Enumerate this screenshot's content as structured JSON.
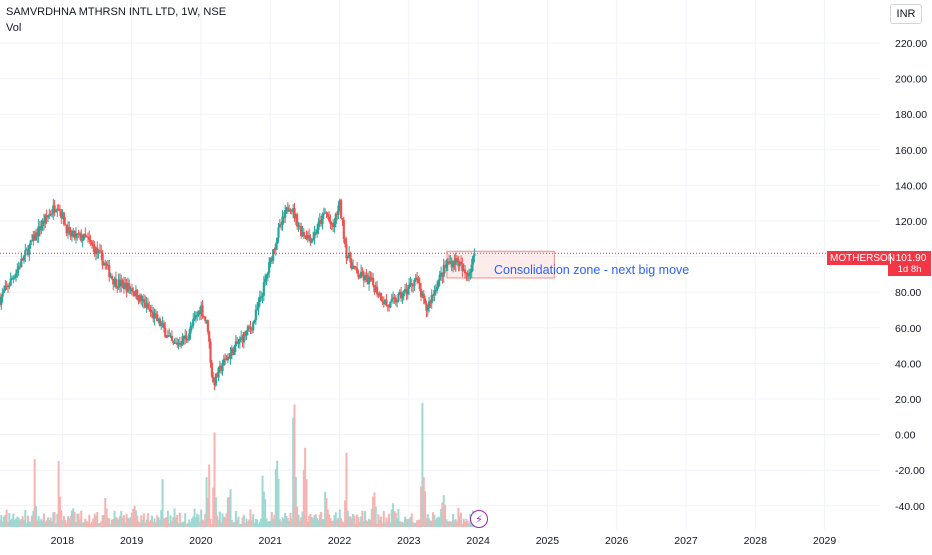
{
  "header": {
    "symbol_line": "SAMVRDHNA MTHRSN INTL LTD, 1W, NSE",
    "volume_label": "Vol"
  },
  "currency_button": "INR",
  "price_tag": {
    "ticker": "MOTHERSON",
    "price": "101.90",
    "countdown": "1d 8h"
  },
  "annotation": {
    "text": "Consolidation zone - next big move"
  },
  "colors": {
    "up": "#26a69a",
    "down": "#ef5350",
    "grid": "#f0f3fa",
    "zone_fill": "#fbe4e4",
    "zone_border": "#f28b8b",
    "price_line": "#f23645",
    "annotation": "#2962ff",
    "bolt": "#9c27b0"
  },
  "icons": {
    "flash": "lightning-bolt-icon"
  },
  "chart_data": {
    "type": "candlestick",
    "interval": "1W",
    "y_axis_ticks": [
      "220.00",
      "200.00",
      "180.00",
      "160.00",
      "140.00",
      "120.00",
      "100.00",
      "80.00",
      "60.00",
      "40.00",
      "20.00",
      "0.00",
      "-20.00",
      "-40.00"
    ],
    "ylim": [
      -40,
      224
    ],
    "x_axis_ticks": [
      "2018",
      "2019",
      "2020",
      "2021",
      "2022",
      "2023",
      "2024",
      "2025",
      "2026",
      "2027",
      "2028",
      "2029"
    ],
    "xlim": [
      2017.1,
      2029.8
    ],
    "price_anchors": [
      [
        2017.1,
        76
      ],
      [
        2017.25,
        86
      ],
      [
        2017.45,
        100
      ],
      [
        2017.7,
        118
      ],
      [
        2017.93,
        130
      ],
      [
        2018.1,
        112
      ],
      [
        2018.35,
        110
      ],
      [
        2018.55,
        100
      ],
      [
        2018.75,
        86
      ],
      [
        2019.0,
        82
      ],
      [
        2019.25,
        70
      ],
      [
        2019.45,
        60
      ],
      [
        2019.6,
        50
      ],
      [
        2019.8,
        55
      ],
      [
        2020.0,
        72
      ],
      [
        2020.1,
        60
      ],
      [
        2020.17,
        28
      ],
      [
        2020.32,
        40
      ],
      [
        2020.55,
        52
      ],
      [
        2020.75,
        62
      ],
      [
        2020.9,
        82
      ],
      [
        2021.1,
        112
      ],
      [
        2021.28,
        130
      ],
      [
        2021.45,
        114
      ],
      [
        2021.6,
        110
      ],
      [
        2021.8,
        125
      ],
      [
        2021.9,
        115
      ],
      [
        2022.0,
        130
      ],
      [
        2022.1,
        102
      ],
      [
        2022.25,
        90
      ],
      [
        2022.45,
        86
      ],
      [
        2022.7,
        72
      ],
      [
        2022.95,
        80
      ],
      [
        2023.1,
        88
      ],
      [
        2023.25,
        70
      ],
      [
        2023.42,
        86
      ],
      [
        2023.55,
        96
      ],
      [
        2023.7,
        98
      ],
      [
        2023.8,
        90
      ],
      [
        2023.88,
        92
      ],
      [
        2023.95,
        101.9
      ]
    ],
    "volume_peaks": [
      [
        2017.6,
        4
      ],
      [
        2017.95,
        5
      ],
      [
        2018.6,
        3
      ],
      [
        2019.05,
        2
      ],
      [
        2019.45,
        2
      ],
      [
        2020.1,
        7
      ],
      [
        2020.2,
        8
      ],
      [
        2020.4,
        6
      ],
      [
        2020.9,
        4
      ],
      [
        2021.1,
        8
      ],
      [
        2021.35,
        10
      ],
      [
        2021.5,
        7
      ],
      [
        2021.8,
        5
      ],
      [
        2022.1,
        4
      ],
      [
        2022.5,
        3
      ],
      [
        2022.8,
        3
      ],
      [
        2023.2,
        10
      ],
      [
        2023.5,
        3
      ],
      [
        2023.95,
        2
      ]
    ],
    "last_price": 101.9,
    "zone": {
      "x_start": 2023.55,
      "x_end": 2025.1,
      "y_low": 88,
      "y_high": 103
    }
  }
}
